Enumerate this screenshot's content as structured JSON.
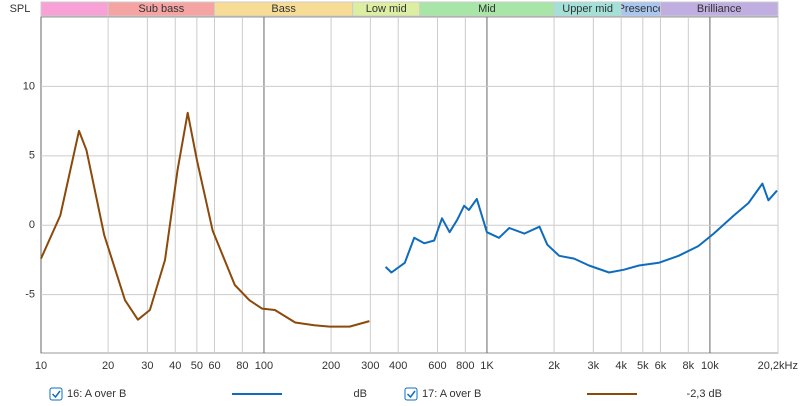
{
  "chart_data": {
    "type": "line",
    "log_x": true,
    "y_axis_label": "SPL",
    "xlim": [
      10,
      20200
    ],
    "ylim": [
      -9.2,
      15
    ],
    "xticks": [
      10,
      20,
      30,
      40,
      50,
      60,
      80,
      100,
      200,
      300,
      400,
      600,
      800,
      {
        "value": 1000,
        "label": "1K"
      },
      {
        "value": 2000,
        "label": "2k"
      },
      {
        "value": 3000,
        "label": "3k"
      },
      {
        "value": 4000,
        "label": "4k"
      },
      {
        "value": 5000,
        "label": "5k"
      },
      {
        "value": 6000,
        "label": "6k"
      },
      {
        "value": 8000,
        "label": "8k"
      },
      {
        "value": 10000,
        "label": "10k"
      },
      {
        "value": 20200,
        "label": "20,2kHz"
      }
    ],
    "yticks": [
      -5,
      0,
      5,
      10
    ],
    "grid": true,
    "bands": [
      {
        "name": "",
        "from": 10,
        "to": 20,
        "color": "#f7a1d6"
      },
      {
        "name": "Sub bass",
        "from": 20,
        "to": 60,
        "color": "#f5a3a3"
      },
      {
        "name": "Bass",
        "from": 60,
        "to": 250,
        "color": "#f7dc95"
      },
      {
        "name": "Low mid",
        "from": 250,
        "to": 500,
        "color": "#dbeea2"
      },
      {
        "name": "Mid",
        "from": 500,
        "to": 2000,
        "color": "#a8e6a8"
      },
      {
        "name": "Upper mid",
        "from": 2000,
        "to": 4000,
        "color": "#a3e0d8"
      },
      {
        "name": "Presence",
        "from": 4000,
        "to": 6000,
        "color": "#a8c6ef"
      },
      {
        "name": "Brilliance",
        "from": 6000,
        "to": 20200,
        "color": "#c0aee0"
      }
    ],
    "series": [
      {
        "name": "16: A over B",
        "legend_value": "dB",
        "color": "#0f6cbd",
        "x": [
          351,
          373,
          428,
          472,
          523,
          580,
          629,
          680,
          736,
          790,
          830,
          901,
          1000,
          1133,
          1260,
          1470,
          1720,
          1865,
          2110,
          2460,
          2870,
          3530,
          4120,
          4810,
          5900,
          7240,
          8870,
          10400,
          12800,
          14900,
          17200,
          18300,
          20000
        ],
        "values": [
          -3.0,
          -3.4,
          -2.7,
          -0.9,
          -1.3,
          -1.1,
          0.5,
          -0.5,
          0.4,
          1.4,
          1.1,
          1.9,
          -0.5,
          -0.9,
          -0.2,
          -0.6,
          -0.1,
          -1.4,
          -2.2,
          -2.4,
          -2.9,
          -3.4,
          -3.2,
          -2.9,
          -2.7,
          -2.2,
          -1.5,
          -0.6,
          0.7,
          1.6,
          3.0,
          1.8,
          2.5
        ]
      },
      {
        "name": "17: A over B",
        "legend_value": "-2,3 dB",
        "color": "#8b4a0c",
        "x": [
          10,
          12.2,
          14.8,
          16,
          19.2,
          23.8,
          27.2,
          30.8,
          36,
          41,
          45.5,
          50,
          58.9,
          74,
          86,
          98,
          112,
          138,
          168,
          197,
          242,
          297
        ],
        "values": [
          -2.4,
          0.7,
          6.8,
          5.4,
          -0.7,
          -5.4,
          -6.8,
          -6.1,
          -2.5,
          4.0,
          8.1,
          4.7,
          -0.4,
          -4.3,
          -5.4,
          -6.0,
          -6.1,
          -7.0,
          -7.2,
          -7.3,
          -7.3,
          -6.9
        ]
      }
    ]
  }
}
